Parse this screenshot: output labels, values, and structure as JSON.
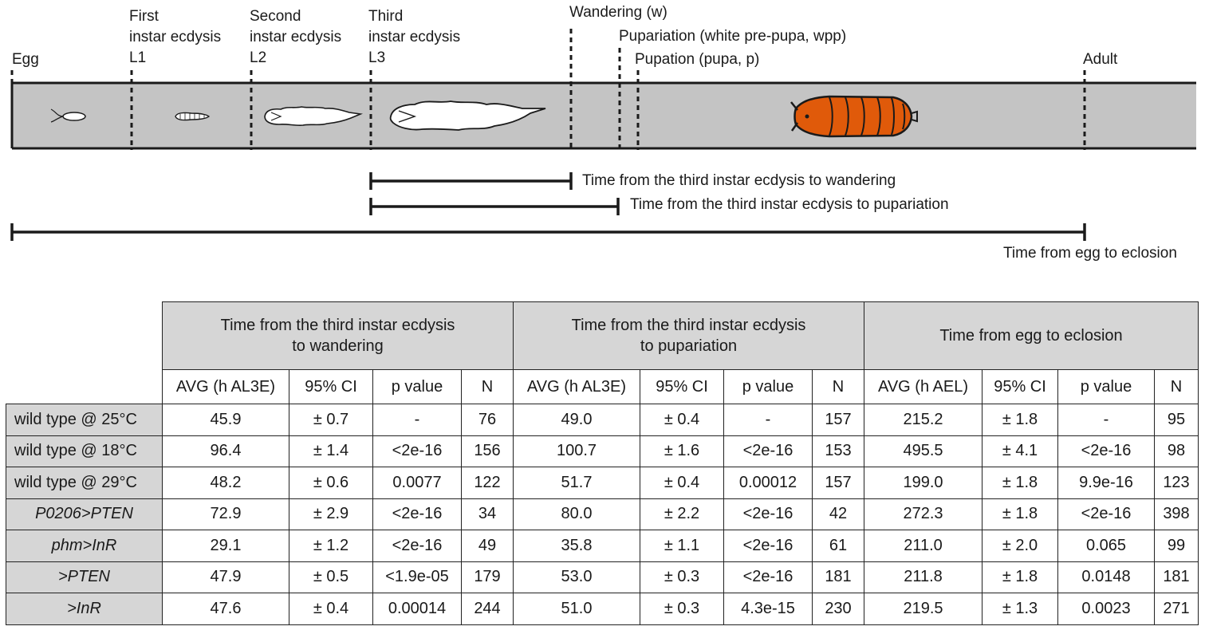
{
  "timeline": {
    "stages": {
      "egg": "Egg",
      "first_top": "First",
      "first_mid": "instar ecdysis",
      "first_code": "L1",
      "second_top": "Second",
      "second_mid": "instar ecdysis",
      "second_code": "L2",
      "third_top": "Third",
      "third_mid": "instar ecdysis",
      "third_code": "L3",
      "wandering": "Wandering (w)",
      "pupariation": "Pupariation (white pre-pupa, wpp)",
      "pupation": "Pupation (pupa, p)",
      "adult": "Adult"
    },
    "intervals": {
      "wandering": "Time from the third instar ecdysis to wandering",
      "pupariation": "Time from the third instar ecdysis to pupariation",
      "eclosion": "Time from egg to eclosion"
    },
    "colors": {
      "bar": "#c4c4c4",
      "pupa": "#e05a0a",
      "outline": "#1a1a1a"
    }
  },
  "table": {
    "groups": [
      {
        "line1": "Time from the third instar ecdysis",
        "line2": "to wandering"
      },
      {
        "line1": "Time from the third instar ecdysis",
        "line2": "to pupariation"
      },
      {
        "line1": "Time from egg to eclosion",
        "line2": ""
      }
    ],
    "subheaders": [
      [
        "AVG (h AL3E)",
        "95% CI",
        "p value",
        "N"
      ],
      [
        "AVG (h AL3E)",
        "95% CI",
        "p value",
        "N"
      ],
      [
        "AVG (h AEL)",
        "95% CI",
        "p value",
        "N"
      ]
    ],
    "rows": [
      {
        "label": "wild type @ 25°C",
        "cells": [
          "45.9",
          "± 0.7",
          "-",
          "76",
          "49.0",
          "± 0.4",
          "-",
          "157",
          "215.2",
          "± 1.8",
          "-",
          "95"
        ]
      },
      {
        "label": "wild type @ 18°C",
        "cells": [
          "96.4",
          "± 1.4",
          "<2e-16",
          "156",
          "100.7",
          "± 1.6",
          "<2e-16",
          "153",
          "495.5",
          "± 4.1",
          "<2e-16",
          "98"
        ]
      },
      {
        "label": "wild type @ 29°C",
        "cells": [
          "48.2",
          "± 0.6",
          "0.0077",
          "122",
          "51.7",
          "± 0.4",
          "0.00012",
          "157",
          "199.0",
          "± 1.8",
          "9.9e-16",
          "123"
        ]
      },
      {
        "label": "P0206>PTEN",
        "cells": [
          "72.9",
          "± 2.9",
          "<2e-16",
          "34",
          "80.0",
          "± 2.2",
          "<2e-16",
          "42",
          "272.3",
          "± 1.8",
          "<2e-16",
          "398"
        ]
      },
      {
        "label": "phm>InR",
        "cells": [
          "29.1",
          "± 1.2",
          "<2e-16",
          "49",
          "35.8",
          "± 1.1",
          "<2e-16",
          "61",
          "211.0",
          "± 2.0",
          "0.065",
          "99"
        ]
      },
      {
        "label": ">PTEN",
        "cells": [
          "47.9",
          "± 0.5",
          "<1.9e-05",
          "179",
          "53.0",
          "± 0.3",
          "<2e-16",
          "181",
          "211.8",
          "± 1.8",
          "0.0148",
          "181"
        ]
      },
      {
        "label": ">InR",
        "cells": [
          "47.6",
          "± 0.4",
          "0.00014",
          "244",
          "51.0",
          "± 0.3",
          "4.3e-15",
          "230",
          "219.5",
          "± 1.3",
          "0.0023",
          "271"
        ]
      }
    ]
  }
}
